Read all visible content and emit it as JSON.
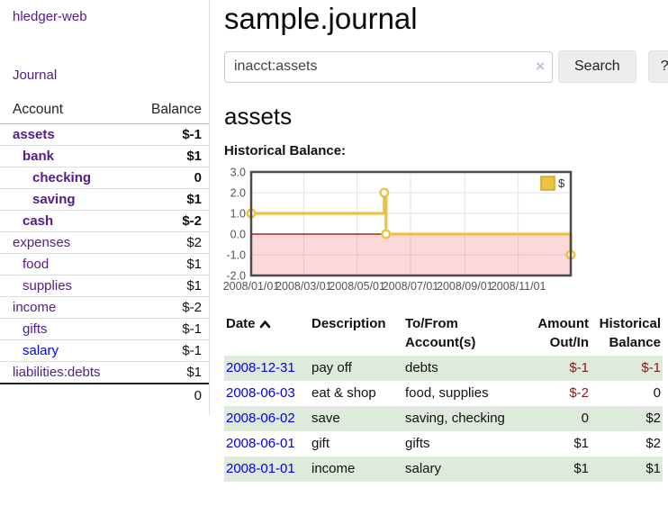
{
  "app": {
    "brand": "hledger-web",
    "nav": {
      "journal": "Journal"
    }
  },
  "sidebar": {
    "columns": {
      "account": "Account",
      "balance": "Balance"
    },
    "accounts": [
      {
        "name": "assets",
        "balance": "$-1",
        "indent": 0,
        "bold": true,
        "neg": "strong"
      },
      {
        "name": "bank",
        "balance": "$1",
        "indent": 1,
        "bold": true,
        "neg": ""
      },
      {
        "name": "checking",
        "balance": "0",
        "indent": 2,
        "bold": true,
        "neg": ""
      },
      {
        "name": "saving",
        "balance": "$1",
        "indent": 2,
        "bold": true,
        "neg": ""
      },
      {
        "name": "cash",
        "balance": "$-2",
        "indent": 1,
        "bold": true,
        "neg": "strong"
      },
      {
        "name": "expenses",
        "balance": "$2",
        "indent": 0,
        "bold": false,
        "neg": ""
      },
      {
        "name": "food",
        "balance": "$1",
        "indent": 1,
        "bold": false,
        "neg": ""
      },
      {
        "name": "supplies",
        "balance": "$1",
        "indent": 1,
        "bold": false,
        "neg": ""
      },
      {
        "name": "income",
        "balance": "$-2",
        "indent": 0,
        "bold": false,
        "neg": "soft"
      },
      {
        "name": "gifts",
        "balance": "$-1",
        "indent": 1,
        "bold": false,
        "neg": "soft"
      },
      {
        "name": "salary",
        "balance": "$-1",
        "indent": 1,
        "bold": false,
        "neg": "soft",
        "link_color": "blue"
      },
      {
        "name": "liabilities:debts",
        "balance": "$1",
        "indent": 0,
        "bold": false,
        "neg": ""
      }
    ],
    "total": "0"
  },
  "header": {
    "title": "sample.journal"
  },
  "search": {
    "value": "inacct:assets",
    "clear_glyph": "×",
    "button_label": "Search",
    "help_label": "?"
  },
  "account_page": {
    "title": "assets",
    "chart_label": "Historical Balance:"
  },
  "chart_data": {
    "type": "line",
    "title": "Historical Balance",
    "step": true,
    "series": [
      {
        "name": "$",
        "color": "#edc240",
        "points": [
          {
            "x": "2008-01-01",
            "y": 1
          },
          {
            "x": "2008-06-01",
            "y": 2
          },
          {
            "x": "2008-06-03",
            "y": 0
          },
          {
            "x": "2008-12-31",
            "y": -1
          }
        ]
      }
    ],
    "xlim": [
      "2008-01-01",
      "2008-12-31"
    ],
    "ylim": [
      -2,
      3
    ],
    "xticks": [
      "2008/01/01",
      "2008/03/01",
      "2008/05/01",
      "2008/07/01",
      "2008/09/01",
      "2008/11/01"
    ],
    "yticks": [
      "3.0",
      "2.0",
      "1.0",
      "0.0",
      "-1.0",
      "-2.0"
    ],
    "grid": true,
    "legend_position": "top-right",
    "legend_label": "$",
    "negative_region": true,
    "colors": {
      "grid": "#e3e3e3",
      "border": "#4a4a4a",
      "zero_line": "#8b0000",
      "negative_fill": "rgba(240,80,80,0.22)",
      "axis_text": "#545454",
      "marker_fill": "#ffffff"
    }
  },
  "register": {
    "headers": {
      "date": "Date",
      "description": "Description",
      "accounts": "To/From Account(s)",
      "amount": "Amount Out/In",
      "balance": "Historical Balance"
    },
    "sort_icon": "chevron-up",
    "rows": [
      {
        "date": "2008-12-31",
        "description": "pay off",
        "accounts": "debts",
        "amount": "$-1",
        "balance": "$-1",
        "amount_neg": true,
        "balance_neg": true
      },
      {
        "date": "2008-06-03",
        "description": "eat & shop",
        "accounts": "food, supplies",
        "amount": "$-2",
        "balance": "0",
        "amount_neg": true,
        "balance_neg": false
      },
      {
        "date": "2008-06-02",
        "description": "save",
        "accounts": "saving, checking",
        "amount": "0",
        "balance": "$2",
        "amount_neg": false,
        "balance_neg": false
      },
      {
        "date": "2008-06-01",
        "description": "gift",
        "accounts": "gifts",
        "amount": "$1",
        "balance": "$2",
        "amount_neg": false,
        "balance_neg": false
      },
      {
        "date": "2008-01-01",
        "description": "income",
        "accounts": "salary",
        "amount": "$1",
        "balance": "$1",
        "amount_neg": false,
        "balance_neg": false
      }
    ]
  }
}
